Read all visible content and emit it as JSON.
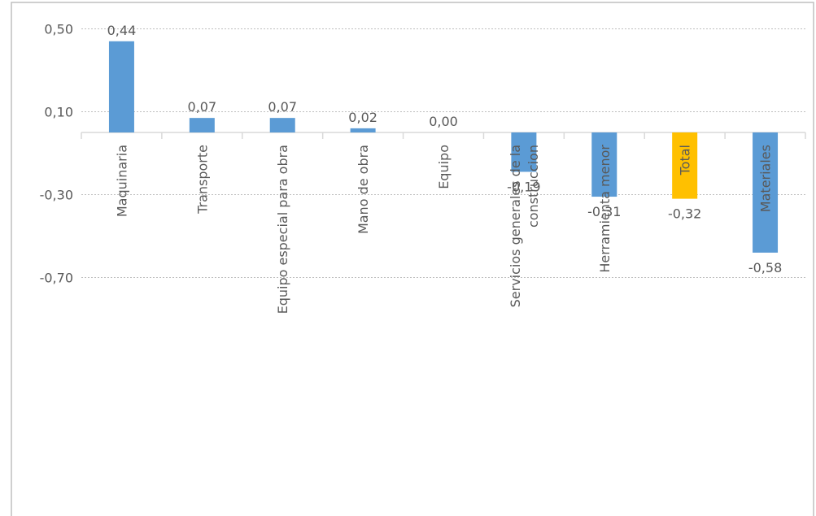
{
  "chart_data": {
    "type": "bar",
    "title": "",
    "xlabel": "",
    "ylabel": "",
    "ylim": [
      -0.7,
      0.5
    ],
    "yticks": [
      "0,50",
      "0,10",
      "-0,30",
      "-0,70"
    ],
    "ytick_values": [
      0.5,
      0.1,
      -0.3,
      -0.7
    ],
    "grid": true,
    "legend": "none",
    "categories": [
      [
        "Maquinaria"
      ],
      [
        "Transporte"
      ],
      [
        "Equipo especial para obra"
      ],
      [
        "Mano de obra"
      ],
      [
        "Equipo"
      ],
      [
        "Servicios generales de la",
        "construccion"
      ],
      [
        "Herramienta menor"
      ],
      [
        "Total"
      ],
      [
        "Materiales"
      ]
    ],
    "values": [
      0.44,
      0.07,
      0.07,
      0.02,
      0.0,
      -0.19,
      -0.31,
      -0.32,
      -0.58
    ],
    "data_labels": [
      "0,44",
      "0,07",
      "0,07",
      "0,02",
      "0,00",
      "-0,19",
      "-0,31",
      "-0,32",
      "-0,58"
    ],
    "colors": {
      "bar": "#5B9BD5",
      "highlight": "#FFC000",
      "grid": "#BFBFBF",
      "axis": "#D9D9D9",
      "text": "#595959",
      "border": "#BFBFBF"
    },
    "highlight_index": 7
  }
}
